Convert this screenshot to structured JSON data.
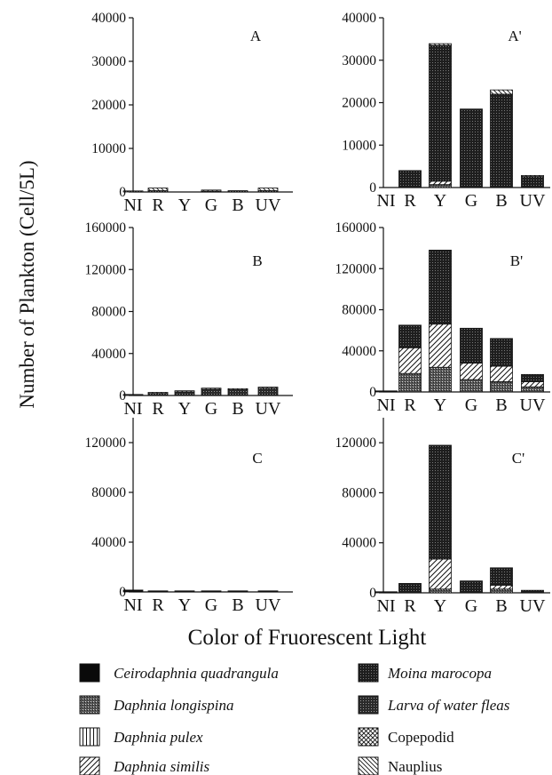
{
  "ylabel": "Number of Plankton (Cell/5L)",
  "xlabel": "Color of Fruorescent Light",
  "legend": [
    {
      "key": "ceriodaphnia",
      "label": "Ceirodaphnia quadrangula",
      "italic": true,
      "pattern": "solid"
    },
    {
      "key": "moina",
      "label": "Moina marocopa",
      "italic": true,
      "pattern": "dense-dots"
    },
    {
      "key": "dlongispina",
      "label": "Daphnia longispina",
      "italic": true,
      "pattern": "dark-dots"
    },
    {
      "key": "larva",
      "label": "Larva of water fleas",
      "italic": true,
      "pattern": "darker-dots"
    },
    {
      "key": "dpulex",
      "label": "Daphnia pulex",
      "italic": true,
      "pattern": "vertical"
    },
    {
      "key": "copepodid",
      "label": "Copepodid",
      "italic": false,
      "pattern": "crosshatch"
    },
    {
      "key": "dsimilis",
      "label": "Daphnia similis",
      "italic": true,
      "pattern": "diagonal"
    },
    {
      "key": "nauplius",
      "label": "Nauplius",
      "italic": false,
      "pattern": "back-diagonal"
    }
  ],
  "chart_data": [
    {
      "type": "bar",
      "stacked": true,
      "label": "A",
      "categories": [
        "NI",
        "R",
        "Y",
        "G",
        "B",
        "UV"
      ],
      "ylim": [
        0,
        40000
      ],
      "yticks": [
        "0",
        "10000",
        "20000",
        "30000",
        "40000"
      ],
      "series": [
        {
          "name": "Larva of water fleas",
          "values": [
            100,
            300,
            0,
            200,
            300,
            300
          ]
        },
        {
          "name": "Nauplius",
          "values": [
            0,
            600,
            0,
            200,
            0,
            600
          ]
        }
      ]
    },
    {
      "type": "bar",
      "stacked": true,
      "label": "A'",
      "categories": [
        "NI",
        "R",
        "Y",
        "G",
        "B",
        "UV"
      ],
      "ylim": [
        0,
        40000
      ],
      "yticks": [
        "0",
        "10000",
        "20000",
        "30000",
        "40000"
      ],
      "series": [
        {
          "name": "Daphnia longispina",
          "values": [
            0,
            0,
            700,
            0,
            0,
            0
          ]
        },
        {
          "name": "Daphnia similis",
          "values": [
            0,
            0,
            800,
            0,
            0,
            0
          ]
        },
        {
          "name": "Moina marocopa",
          "values": [
            0,
            4000,
            32000,
            18500,
            22000,
            2600
          ]
        },
        {
          "name": "Nauplius",
          "values": [
            0,
            0,
            400,
            0,
            1000,
            200
          ]
        }
      ]
    },
    {
      "type": "bar",
      "stacked": true,
      "label": "B",
      "categories": [
        "NI",
        "R",
        "Y",
        "G",
        "B",
        "UV"
      ],
      "ylim": [
        0,
        160000
      ],
      "yticks": [
        "0",
        "40000",
        "80000",
        "120000",
        "160000"
      ],
      "series": [
        {
          "name": "Larva of water fleas",
          "values": [
            500,
            2000,
            3500,
            6000,
            5500,
            7000
          ]
        },
        {
          "name": "Nauplius",
          "values": [
            0,
            500,
            500,
            500,
            500,
            800
          ]
        }
      ]
    },
    {
      "type": "bar",
      "stacked": true,
      "label": "B'",
      "categories": [
        "NI",
        "R",
        "Y",
        "G",
        "B",
        "UV"
      ],
      "ylim": [
        0,
        160000
      ],
      "yticks": [
        "0",
        "40000",
        "80000",
        "120000",
        "160000"
      ],
      "series": [
        {
          "name": "Ceirodaphnia quadrangula",
          "values": [
            1000,
            0,
            0,
            0,
            0,
            0
          ]
        },
        {
          "name": "Daphnia longispina",
          "values": [
            0,
            18000,
            24000,
            12000,
            10000,
            5000
          ]
        },
        {
          "name": "Daphnia similis",
          "values": [
            0,
            25000,
            42000,
            16000,
            15000,
            5000
          ]
        },
        {
          "name": "Moina marocopa",
          "values": [
            0,
            22000,
            72000,
            34000,
            27000,
            7000
          ]
        }
      ]
    },
    {
      "type": "bar",
      "stacked": true,
      "label": "C",
      "categories": [
        "NI",
        "R",
        "Y",
        "G",
        "B",
        "UV"
      ],
      "ylim": [
        0,
        140000
      ],
      "yticks": [
        "0",
        "40000",
        "80000",
        "120000"
      ],
      "series": [
        {
          "name": "Ceirodaphnia quadrangula",
          "values": [
            1500,
            500,
            300,
            300,
            300,
            200
          ]
        }
      ]
    },
    {
      "type": "bar",
      "stacked": true,
      "label": "C'",
      "categories": [
        "NI",
        "R",
        "Y",
        "G",
        "B",
        "UV"
      ],
      "ylim": [
        0,
        140000
      ],
      "yticks": [
        "0",
        "40000",
        "80000",
        "120000"
      ],
      "series": [
        {
          "name": "Ceirodaphnia quadrangula",
          "values": [
            500,
            0,
            0,
            0,
            0,
            0
          ]
        },
        {
          "name": "Daphnia longispina",
          "values": [
            0,
            0,
            3000,
            0,
            3000,
            0
          ]
        },
        {
          "name": "Daphnia similis",
          "values": [
            0,
            0,
            24000,
            0,
            3000,
            0
          ]
        },
        {
          "name": "Moina marocopa",
          "values": [
            0,
            7500,
            91000,
            9500,
            14000,
            2000
          ]
        }
      ]
    }
  ]
}
